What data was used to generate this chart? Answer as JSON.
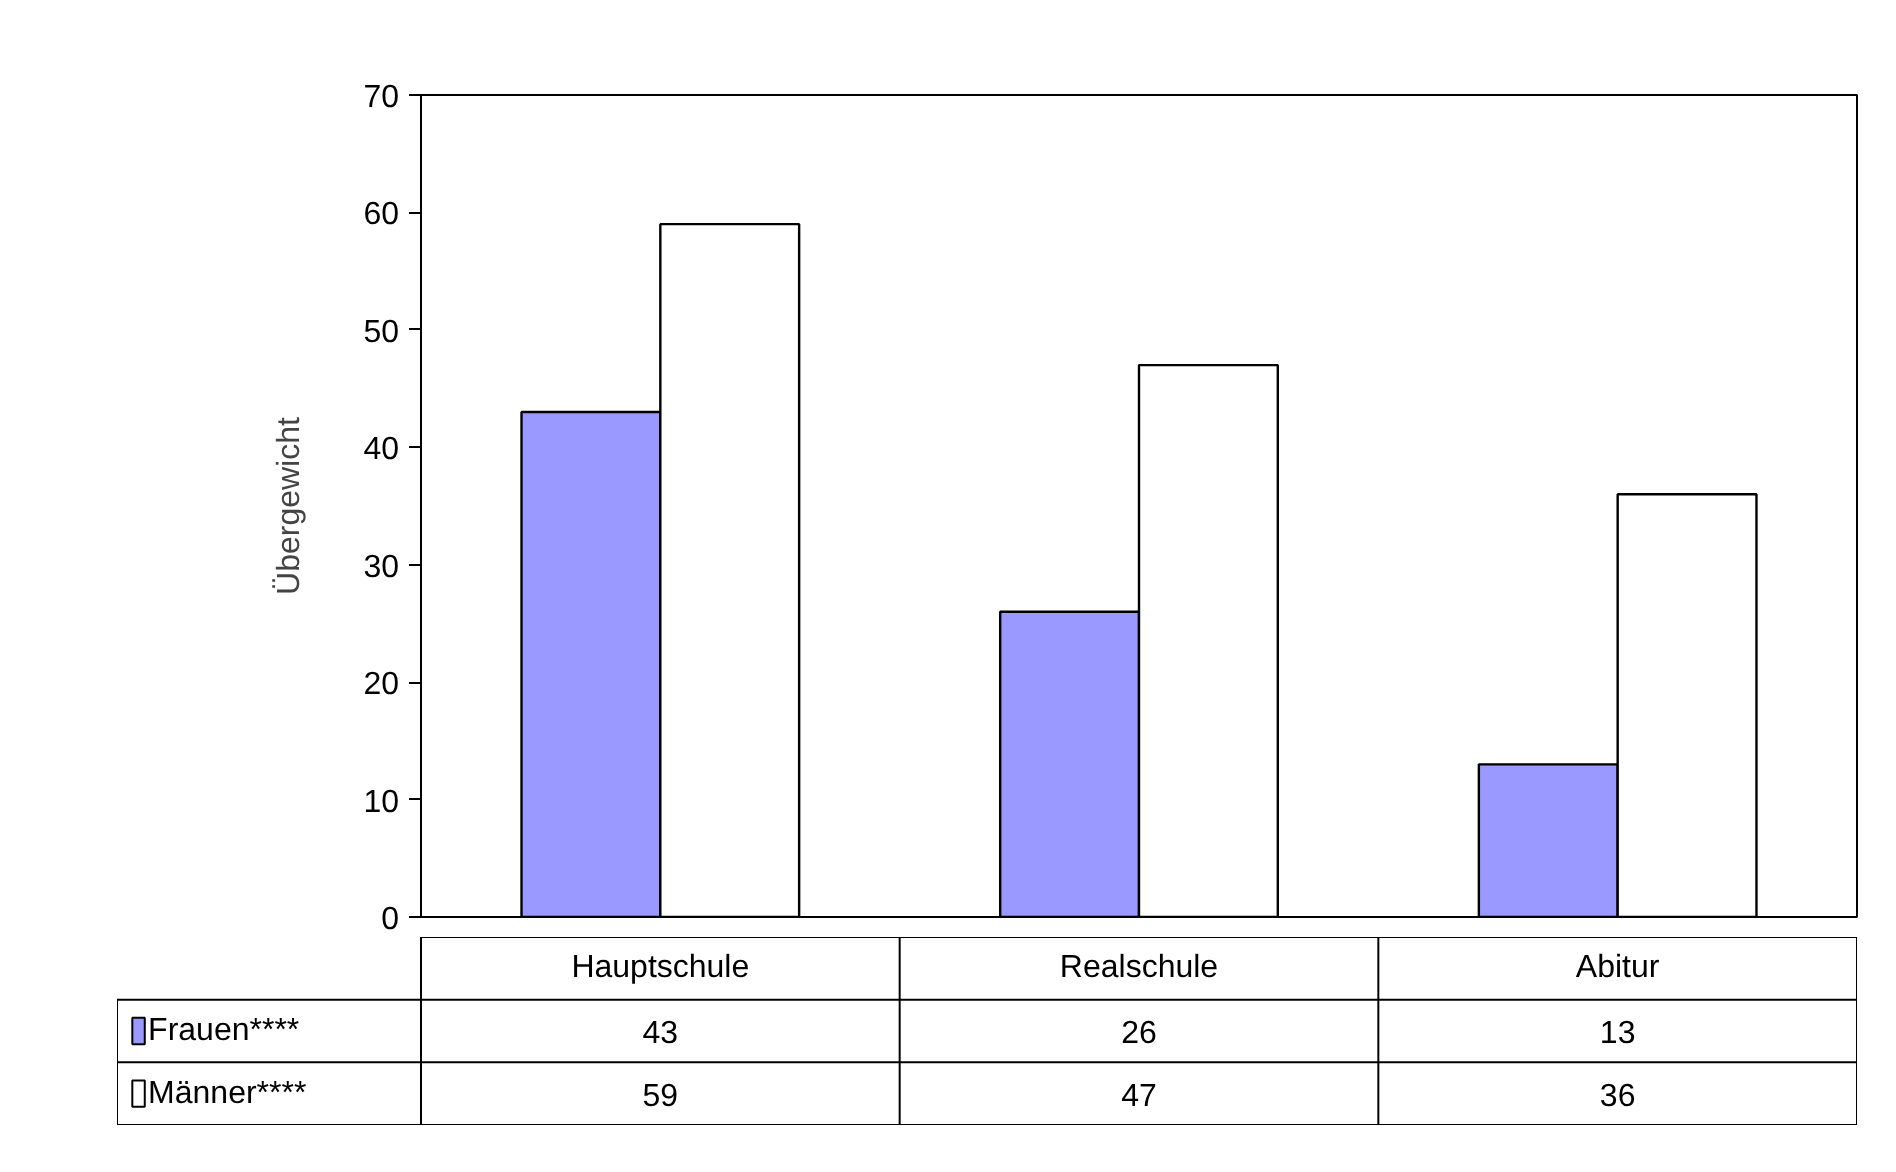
{
  "chart_data": {
    "type": "bar",
    "ylabel": "Übergewicht",
    "categories": [
      "Hauptschule",
      "Realschule",
      "Abitur"
    ],
    "series": [
      {
        "name": "Frauen****",
        "color": "#9999ff",
        "values": [
          43,
          26,
          13
        ]
      },
      {
        "name": "Männer****",
        "color": "#ffffff",
        "values": [
          59,
          47,
          36
        ]
      }
    ],
    "ylim": [
      0,
      70
    ],
    "yticks": [
      0,
      10,
      20,
      30,
      40,
      50,
      60,
      70
    ],
    "grid": false,
    "legend": "bottom left",
    "data_labels": true
  }
}
